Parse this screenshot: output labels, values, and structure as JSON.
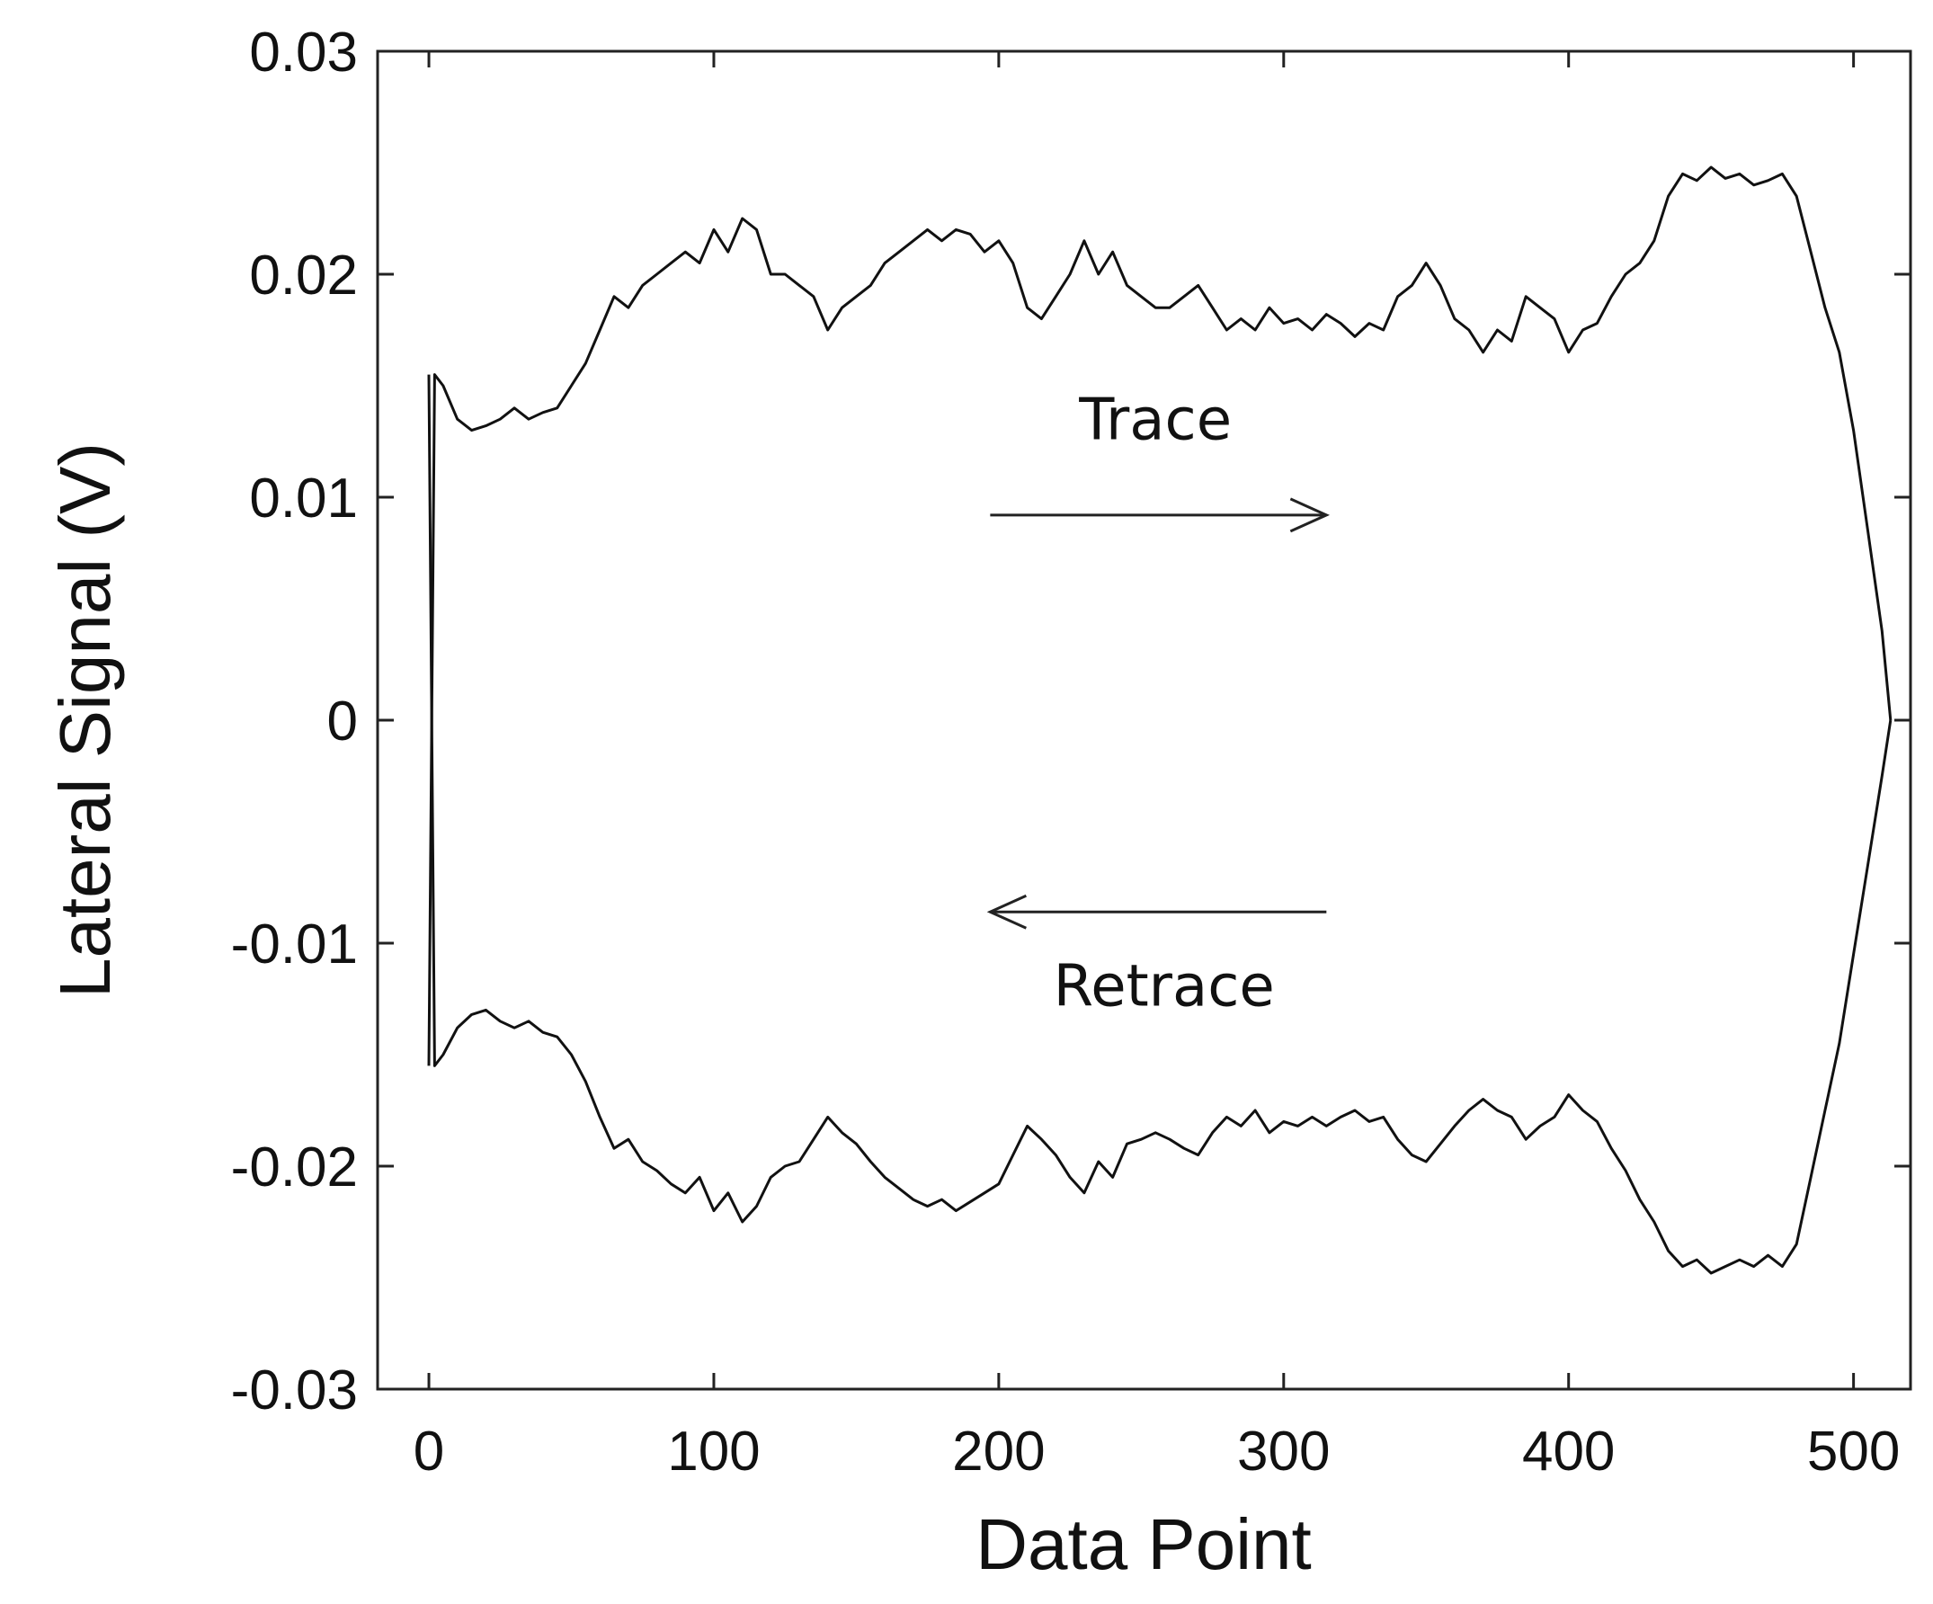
{
  "chart_data": {
    "type": "line",
    "title": "",
    "xlabel": "Data Point",
    "ylabel": "Lateral Signal (V)",
    "xlim": [
      -18,
      520
    ],
    "ylim": [
      -0.03,
      0.03
    ],
    "x_ticks": [
      0,
      100,
      200,
      300,
      400,
      500
    ],
    "x_tick_labels": [
      "0",
      "100",
      "200",
      "300",
      "400",
      "500"
    ],
    "y_ticks": [
      0.03,
      0.02,
      0.01,
      0,
      -0.01,
      -0.02,
      -0.03
    ],
    "y_tick_labels": [
      "0.03",
      "0.02",
      "0.01",
      "0",
      "-0.01",
      "-0.02",
      "-0.03"
    ],
    "grid": false,
    "legend": "none",
    "line_color": "#111111",
    "annotations": [
      {
        "text": "Trace",
        "x": 255,
        "y": 0.0126,
        "arrow": "right",
        "arrow_from": [
          197,
          0.0092
        ],
        "arrow_to": [
          315,
          0.0092
        ]
      },
      {
        "text": "Retrace",
        "x": 258,
        "y": -0.0128,
        "arrow": "left",
        "arrow_from": [
          315,
          -0.0086
        ],
        "arrow_to": [
          197,
          -0.0086
        ]
      }
    ],
    "series": [
      {
        "x": [
          0,
          2,
          5,
          10,
          15,
          20,
          25,
          30,
          35,
          40,
          45,
          50,
          55,
          60,
          65,
          70,
          75,
          80,
          85,
          90,
          95,
          100,
          105,
          110,
          115,
          120,
          125,
          130,
          135,
          140,
          145,
          150,
          155,
          160,
          165,
          170,
          175,
          180,
          185,
          190,
          195,
          200,
          205,
          210,
          215,
          220,
          225,
          230,
          235,
          240,
          245,
          250,
          255,
          260,
          265,
          270,
          275,
          280,
          285,
          290,
          295,
          300,
          305,
          310,
          315,
          320,
          325,
          330,
          335,
          340,
          345,
          350,
          355,
          360,
          365,
          370,
          375,
          380,
          385,
          390,
          395,
          400,
          405,
          410,
          415,
          420,
          425,
          430,
          435,
          440,
          445,
          450,
          455,
          460,
          465,
          470,
          475,
          480,
          485,
          490,
          495,
          500,
          505,
          510,
          513
        ],
        "values": [
          -0.0155,
          0.0155,
          0.015,
          0.0135,
          0.013,
          0.0132,
          0.0135,
          0.014,
          0.0135,
          0.0138,
          0.014,
          0.015,
          0.016,
          0.0175,
          0.019,
          0.0185,
          0.0195,
          0.02,
          0.0205,
          0.021,
          0.0205,
          0.022,
          0.021,
          0.0225,
          0.022,
          0.02,
          0.02,
          0.0195,
          0.019,
          0.0175,
          0.0185,
          0.019,
          0.0195,
          0.0205,
          0.021,
          0.0215,
          0.022,
          0.0215,
          0.022,
          0.0218,
          0.021,
          0.0215,
          0.0205,
          0.0185,
          0.018,
          0.019,
          0.02,
          0.0215,
          0.02,
          0.021,
          0.0195,
          0.019,
          0.0185,
          0.0185,
          0.019,
          0.0195,
          0.0185,
          0.0175,
          0.018,
          0.0175,
          0.0185,
          0.0178,
          0.018,
          0.0175,
          0.0182,
          0.0178,
          0.0172,
          0.0178,
          0.0175,
          0.019,
          0.0195,
          0.0205,
          0.0195,
          0.018,
          0.0175,
          0.0165,
          0.0175,
          0.017,
          0.019,
          0.0185,
          0.018,
          0.0165,
          0.0175,
          0.0178,
          0.019,
          0.02,
          0.0205,
          0.0215,
          0.0235,
          0.0245,
          0.0242,
          0.0248,
          0.0243,
          0.0245,
          0.024,
          0.0242,
          0.0245,
          0.0235,
          0.021,
          0.0185,
          0.0165,
          0.013,
          0.0085,
          0.004,
          0.0
        ]
      },
      {
        "x": [
          0,
          2,
          5,
          10,
          15,
          20,
          25,
          30,
          35,
          40,
          45,
          50,
          55,
          60,
          65,
          70,
          75,
          80,
          85,
          90,
          95,
          100,
          105,
          110,
          115,
          120,
          125,
          130,
          135,
          140,
          145,
          150,
          155,
          160,
          165,
          170,
          175,
          180,
          185,
          190,
          195,
          200,
          205,
          210,
          215,
          220,
          225,
          230,
          235,
          240,
          245,
          250,
          255,
          260,
          265,
          270,
          275,
          280,
          285,
          290,
          295,
          300,
          305,
          310,
          315,
          320,
          325,
          330,
          335,
          340,
          345,
          350,
          355,
          360,
          365,
          370,
          375,
          380,
          385,
          390,
          395,
          400,
          405,
          410,
          415,
          420,
          425,
          430,
          435,
          440,
          445,
          450,
          455,
          460,
          465,
          470,
          475,
          480,
          485,
          490,
          495,
          500,
          505,
          510,
          513
        ],
        "values": [
          0.0155,
          -0.0155,
          -0.015,
          -0.0138,
          -0.0132,
          -0.013,
          -0.0135,
          -0.0138,
          -0.0135,
          -0.014,
          -0.0142,
          -0.015,
          -0.0162,
          -0.0178,
          -0.0192,
          -0.0188,
          -0.0198,
          -0.0202,
          -0.0208,
          -0.0212,
          -0.0205,
          -0.022,
          -0.0212,
          -0.0225,
          -0.0218,
          -0.0205,
          -0.02,
          -0.0198,
          -0.0188,
          -0.0178,
          -0.0185,
          -0.019,
          -0.0198,
          -0.0205,
          -0.021,
          -0.0215,
          -0.0218,
          -0.0215,
          -0.022,
          -0.0216,
          -0.0212,
          -0.0208,
          -0.0195,
          -0.0182,
          -0.0188,
          -0.0195,
          -0.0205,
          -0.0212,
          -0.0198,
          -0.0205,
          -0.019,
          -0.0188,
          -0.0185,
          -0.0188,
          -0.0192,
          -0.0195,
          -0.0185,
          -0.0178,
          -0.0182,
          -0.0175,
          -0.0185,
          -0.018,
          -0.0182,
          -0.0178,
          -0.0182,
          -0.0178,
          -0.0175,
          -0.018,
          -0.0178,
          -0.0188,
          -0.0195,
          -0.0198,
          -0.019,
          -0.0182,
          -0.0175,
          -0.017,
          -0.0175,
          -0.0178,
          -0.0188,
          -0.0182,
          -0.0178,
          -0.0168,
          -0.0175,
          -0.018,
          -0.0192,
          -0.0202,
          -0.0215,
          -0.0225,
          -0.0238,
          -0.0245,
          -0.0242,
          -0.0248,
          -0.0245,
          -0.0242,
          -0.0245,
          -0.024,
          -0.0245,
          -0.0235,
          -0.0205,
          -0.0175,
          -0.0145,
          -0.0105,
          -0.0065,
          -0.0025,
          0.0
        ]
      }
    ]
  }
}
